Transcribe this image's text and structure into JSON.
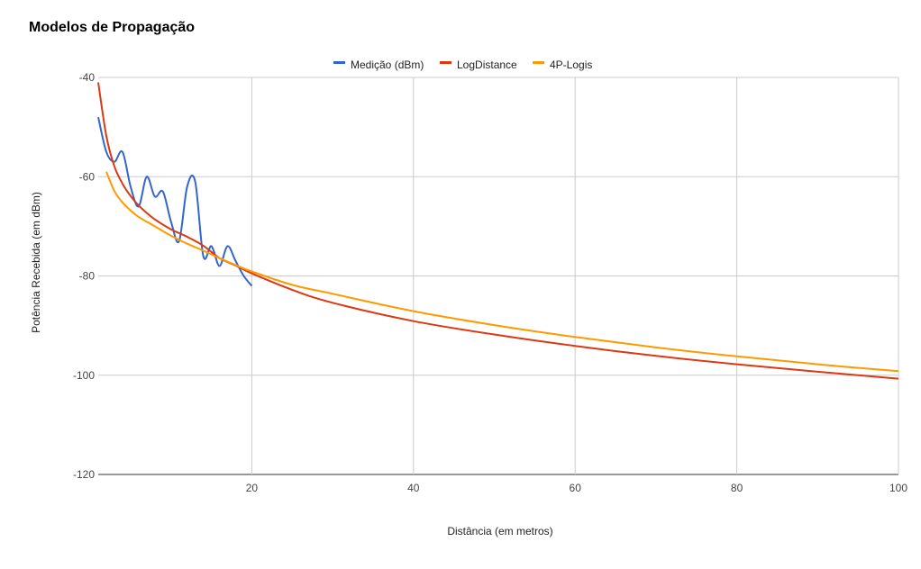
{
  "chart_data": {
    "type": "line",
    "title": "Modelos de Propagação",
    "xlabel": "Distância (em metros)",
    "ylabel": "Potência Recebida (em dBm)",
    "xlim": [
      1,
      100
    ],
    "ylim": [
      -120,
      -40
    ],
    "x_ticks": [
      20,
      40,
      60,
      80,
      100
    ],
    "y_ticks": [
      -40,
      -60,
      -80,
      -100,
      -120
    ],
    "grid": true,
    "legend_position": "top",
    "series": [
      {
        "name": "Medição (dBm)",
        "color": "#3366cc",
        "x": [
          1,
          2,
          3,
          4,
          5,
          6,
          7,
          8,
          9,
          10,
          11,
          12,
          13,
          14,
          15,
          16,
          17,
          18,
          19,
          20
        ],
        "y": [
          -48,
          -55,
          -57,
          -55,
          -62,
          -66,
          -60,
          -64,
          -63,
          -69,
          -73,
          -62,
          -61,
          -76,
          -74,
          -78,
          -74,
          -77,
          -80,
          -82
        ]
      },
      {
        "name": "LogDistance",
        "color": "#dc3912",
        "x": [
          1,
          2,
          3,
          4,
          5,
          6,
          7,
          8,
          10,
          12,
          14,
          16,
          18,
          20,
          25,
          30,
          40,
          50,
          60,
          70,
          80,
          90,
          100
        ],
        "y": [
          -41,
          -51.8,
          -57.9,
          -61.4,
          -63.9,
          -65.8,
          -67.3,
          -68.6,
          -70.6,
          -72.1,
          -73.9,
          -76.4,
          -77.9,
          -79.5,
          -82.8,
          -85.4,
          -89.1,
          -91.8,
          -94.1,
          -96.1,
          -97.8,
          -99.3,
          -100.7
        ]
      },
      {
        "name": "4P-Logis",
        "color": "#ff9900",
        "x": [
          2,
          3,
          4,
          5,
          6,
          8,
          10,
          12,
          14,
          16,
          18,
          20,
          25,
          30,
          40,
          50,
          60,
          70,
          80,
          90,
          100
        ],
        "y": [
          -59,
          -62.9,
          -65.2,
          -66.8,
          -68.1,
          -70,
          -71.9,
          -73.5,
          -74.9,
          -76.4,
          -77.8,
          -79.1,
          -81.8,
          -83.6,
          -87.1,
          -89.9,
          -92.3,
          -94.4,
          -96.2,
          -97.8,
          -99.2
        ]
      }
    ]
  }
}
